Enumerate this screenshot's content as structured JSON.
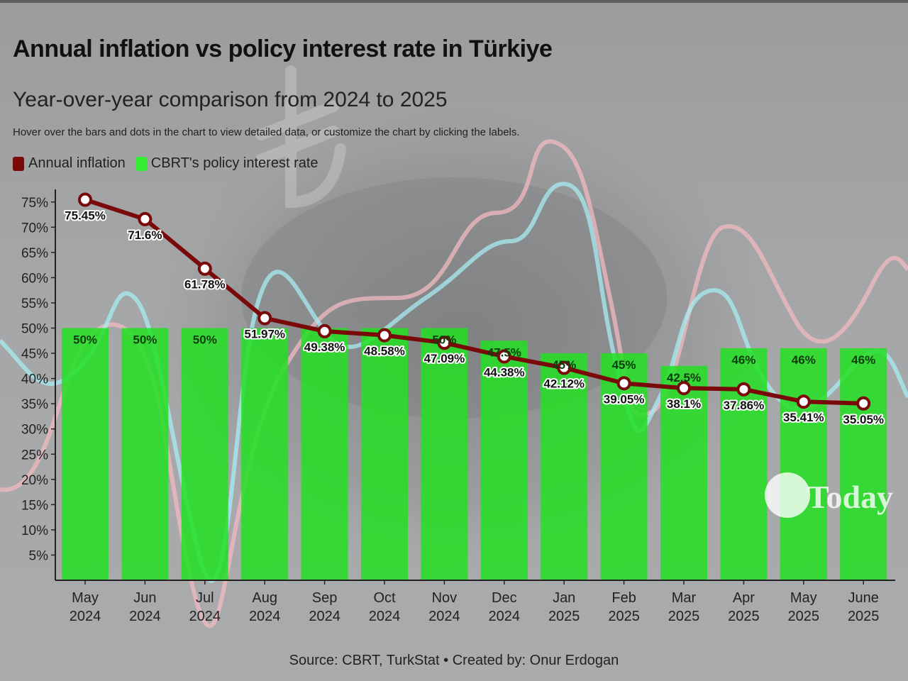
{
  "header": {
    "title": "Annual inflation vs policy interest rate in Türkiye",
    "subtitle": "Year-over-year comparison from 2024 to 2025",
    "note": "Hover over the bars and dots in the chart to view detailed data, or customize the chart by clicking the labels."
  },
  "legend": [
    {
      "label": "Annual inflation",
      "color": "#7a0a0a"
    },
    {
      "label": "CBRT's policy interest rate",
      "color": "#33ee33"
    }
  ],
  "footer": {
    "source": "Source: CBRT, TurkStat • Created by: Onur Erdogan"
  },
  "logo_text": "Today",
  "colors": {
    "inflation_line": "#7a0a0a",
    "policy_bar": "#2be02b",
    "background": "#a4a6a7"
  },
  "chart_data": {
    "type": "bar",
    "categories": [
      [
        "May",
        "2024"
      ],
      [
        "Jun",
        "2024"
      ],
      [
        "Jul",
        "2024"
      ],
      [
        "Aug",
        "2024"
      ],
      [
        "Sep",
        "2024"
      ],
      [
        "Oct",
        "2024"
      ],
      [
        "Nov",
        "2024"
      ],
      [
        "Dec",
        "2024"
      ],
      [
        "Jan",
        "2025"
      ],
      [
        "Feb",
        "2025"
      ],
      [
        "Mar",
        "2025"
      ],
      [
        "Apr",
        "2025"
      ],
      [
        "May",
        "2025"
      ],
      [
        "June",
        "2025"
      ]
    ],
    "series": [
      {
        "name": "Annual inflation",
        "kind": "line",
        "values": [
          75.45,
          71.6,
          61.78,
          51.97,
          49.38,
          48.58,
          47.09,
          44.38,
          42.12,
          39.05,
          38.1,
          37.86,
          35.41,
          35.05
        ],
        "labels": [
          "75.45%",
          "71.6%",
          "61.78%",
          "51.97%",
          "49.38%",
          "48.58%",
          "47.09%",
          "44.38%",
          "42.12%",
          "39.05%",
          "38.1%",
          "37.86%",
          "35.41%",
          "35.05%"
        ]
      },
      {
        "name": "CBRT's policy interest rate",
        "kind": "bar",
        "values": [
          50,
          50,
          50,
          50,
          50,
          50,
          50,
          47.5,
          45,
          45,
          42.5,
          46,
          46,
          46
        ],
        "labels": [
          "50%",
          "50%",
          "50%",
          "",
          "",
          "",
          "50%",
          "47.5%",
          "45%",
          "45%",
          "42.5%",
          "46%",
          "46%",
          "46%"
        ]
      }
    ],
    "yticks": [
      "5%",
      "10%",
      "15%",
      "20%",
      "25%",
      "30%",
      "35%",
      "40%",
      "45%",
      "50%",
      "55%",
      "60%",
      "65%",
      "70%",
      "75%"
    ],
    "ylim": [
      0,
      77
    ],
    "xlabel": "",
    "ylabel": "",
    "grid": false,
    "legend_position": "top-left"
  }
}
